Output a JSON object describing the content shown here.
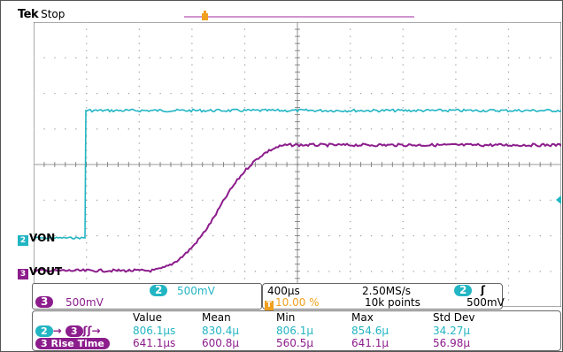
{
  "status": {
    "brand": "Tek",
    "state": "Stop"
  },
  "channels": {
    "ch2": {
      "marker": "2",
      "name": "VON"
    },
    "ch3": {
      "marker": "3",
      "name": "VOUT"
    }
  },
  "ch_panel": {
    "ch3_marker": "3",
    "ch3_scale": "500mV",
    "ch2_marker": "2",
    "ch2_scale": "500mV"
  },
  "timebase": {
    "time_div": "400µs",
    "sample_rate": "2.50MS/s",
    "trigger_pos": "10.00 %",
    "record": "10k points",
    "trig_ch": "2",
    "trig_slope": "ʃ",
    "trig_level": "500mV"
  },
  "measurements": {
    "headers": [
      "Value",
      "Mean",
      "Min",
      "Max",
      "Std Dev"
    ],
    "rows": [
      {
        "label": "→ ",
        "arrow_tail": "ʃʃ→",
        "src_a": "2",
        "src_b": "3",
        "values": [
          "806.1µs",
          "830.4µ",
          "806.1µ",
          "854.6µ",
          "34.27µ"
        ]
      },
      {
        "label": "Rise Time",
        "src": "3",
        "values": [
          "641.1µs",
          "600.8µ",
          "560.5µ",
          "641.1µ",
          "56.98µ"
        ]
      }
    ]
  },
  "colors": {
    "ch2": "#22b5c3",
    "ch3": "#8c1d8c",
    "trigger": "#f0a020",
    "grid": "#9a9a9a"
  },
  "icons": {
    "trigger_marker": "trigger-t-icon",
    "trigger_level": "trigger-level-arrow-icon"
  }
}
